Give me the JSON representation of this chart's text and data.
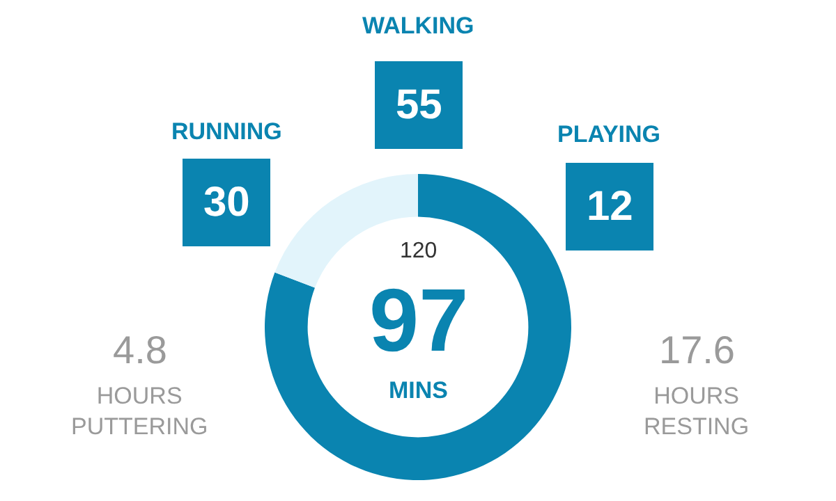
{
  "chart_data": {
    "type": "donut",
    "categories": [
      null,
      null
    ],
    "values": [
      80.8,
      19.2
    ],
    "colors": [
      "#0a84b0",
      "#e2f4fb"
    ],
    "annotations": [
      "120",
      "97",
      "MINS",
      "RUNNING",
      "30",
      "WALKING",
      "55",
      "PLAYING",
      "12",
      "4.8",
      "HOURS\nPUTTERING",
      "17.6",
      "HOURS\nRESTING"
    ]
  }
}
